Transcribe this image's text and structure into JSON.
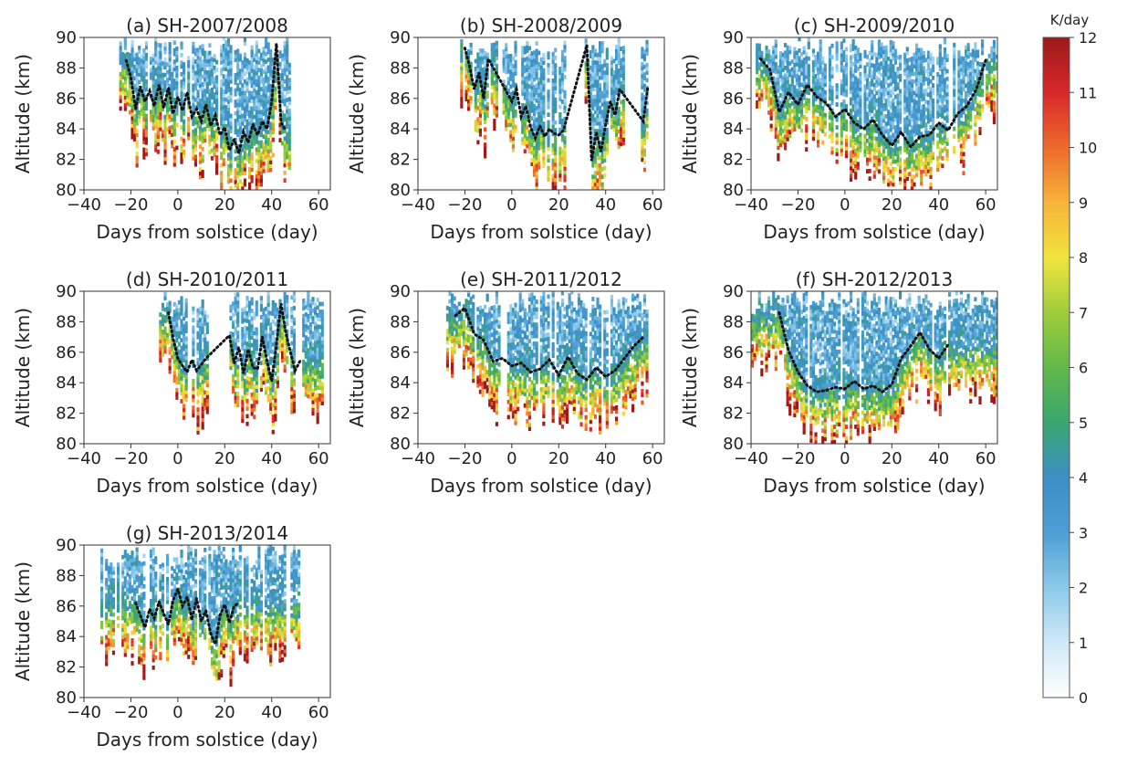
{
  "chart_data": {
    "type": "heatmap",
    "figure_description": "Gravity wave heating rate vs altitude and days from solstice, Southern Hemisphere seasons",
    "colorbar": {
      "label": "K/day",
      "range": [
        0,
        12
      ],
      "ticks": [
        "0",
        "1",
        "2",
        "3",
        "4",
        "5",
        "6",
        "7",
        "8",
        "9",
        "10",
        "11",
        "12"
      ],
      "colormap": [
        "#ffffff",
        "#cfe9f7",
        "#8cc9ea",
        "#4d9ed3",
        "#3b8fc4",
        "#3aa66f",
        "#62b84a",
        "#9fcd3c",
        "#f2e43e",
        "#f6b33b",
        "#ee6a2c",
        "#d8282a",
        "#9b1a1a"
      ]
    },
    "shared_axes": {
      "xlabel": "Days from solstice (day)",
      "ylabel": "Altitude (km)",
      "xlim": [
        -40,
        65
      ],
      "ylim": [
        80,
        90
      ],
      "xticks": [
        "−40",
        "−20",
        "0",
        "20",
        "40",
        "60"
      ],
      "yticks": [
        "80",
        "82",
        "84",
        "86",
        "88",
        "90"
      ]
    },
    "panels": [
      {
        "title": "(a) SH-2007/2008",
        "data_days": [
          -25,
          48
        ],
        "gaps": [],
        "dotted_contour_days": [
          -22,
          -20,
          -18,
          -16,
          -14,
          -12,
          -10,
          -8,
          -6,
          -4,
          -2,
          0,
          2,
          4,
          6,
          8,
          10,
          12,
          14,
          16,
          18,
          20,
          22,
          24,
          26,
          28,
          30,
          32,
          34,
          36,
          38,
          40,
          42,
          44,
          46
        ],
        "dotted_contour_alt": [
          88.5,
          87.4,
          85.3,
          86.8,
          85.8,
          86.5,
          85.5,
          86.9,
          85.4,
          86.7,
          85.0,
          86.1,
          85.2,
          86.4,
          84.8,
          85.3,
          84.5,
          85.6,
          84.2,
          84.9,
          83.6,
          84.1,
          82.6,
          83.3,
          82.4,
          83.8,
          83.1,
          84.3,
          83.6,
          84.5,
          84.0,
          85.8,
          89.6,
          84.4,
          83.9
        ]
      },
      {
        "title": "(b) SH-2008/2009",
        "data_days": [
          -22,
          58
        ],
        "gaps": [
          [
            23,
            31
          ],
          [
            48,
            55
          ]
        ],
        "dotted_contour_days": [
          -20,
          -18,
          -16,
          -14,
          -12,
          -10,
          0,
          2,
          4,
          6,
          8,
          10,
          12,
          14,
          16,
          18,
          20,
          22,
          32,
          34,
          36,
          38,
          40,
          42,
          44,
          46,
          56,
          58
        ],
        "dotted_contour_alt": [
          89.3,
          88.1,
          86.6,
          87.7,
          86.0,
          88.6,
          85.8,
          86.6,
          84.8,
          85.5,
          84.1,
          83.4,
          84.2,
          83.5,
          84.0,
          83.7,
          83.6,
          83.9,
          89.5,
          81.9,
          83.8,
          82.5,
          84.3,
          85.8,
          84.9,
          86.6,
          84.5,
          86.8
        ]
      },
      {
        "title": "(c) SH-2009/2010",
        "data_days": [
          -38,
          65
        ],
        "gaps": [],
        "dotted_contour_days": [
          -36,
          -32,
          -28,
          -24,
          -20,
          -16,
          -12,
          -8,
          -4,
          0,
          4,
          8,
          12,
          16,
          20,
          24,
          28,
          32,
          36,
          40,
          44,
          48,
          52,
          56,
          60
        ],
        "dotted_contour_alt": [
          88.6,
          87.9,
          85.1,
          86.4,
          85.6,
          86.9,
          86.1,
          85.7,
          84.8,
          85.3,
          84.4,
          84.0,
          84.6,
          83.6,
          82.9,
          83.8,
          82.8,
          83.5,
          83.6,
          84.4,
          83.9,
          85.0,
          85.5,
          86.6,
          88.5
        ]
      },
      {
        "title": "(d) SH-2010/2011",
        "data_days": [
          -8,
          62
        ],
        "gaps": [
          [
            14,
            21
          ]
        ],
        "dotted_contour_days": [
          -4,
          -2,
          0,
          2,
          4,
          6,
          8,
          10,
          12,
          22,
          24,
          26,
          28,
          30,
          32,
          34,
          36,
          38,
          40,
          42,
          44,
          46,
          48,
          50,
          52
        ],
        "dotted_contour_alt": [
          88.6,
          86.9,
          85.6,
          85.1,
          84.7,
          85.5,
          84.8,
          85.2,
          85.6,
          87.1,
          85.3,
          86.3,
          84.6,
          86.2,
          85.0,
          84.9,
          87.0,
          85.4,
          84.1,
          86.5,
          89.2,
          87.3,
          86.0,
          84.8,
          85.4
        ]
      },
      {
        "title": "(e) SH-2011/2012",
        "data_days": [
          -28,
          58
        ],
        "gaps": [],
        "dotted_contour_days": [
          -24,
          -20,
          -16,
          -12,
          -8,
          -4,
          0,
          4,
          8,
          12,
          16,
          20,
          24,
          28,
          32,
          36,
          40,
          44,
          48,
          52,
          56
        ],
        "dotted_contour_alt": [
          88.4,
          88.9,
          87.2,
          86.8,
          85.4,
          85.6,
          85.1,
          85.3,
          84.7,
          84.9,
          85.5,
          84.5,
          85.7,
          84.6,
          84.2,
          85.0,
          84.4,
          84.8,
          85.6,
          86.4,
          87.0
        ]
      },
      {
        "title": "(f) SH-2012/2013",
        "data_days": [
          -40,
          65
        ],
        "gaps": [],
        "dotted_contour_days": [
          -28,
          -24,
          -20,
          -16,
          -12,
          -8,
          -4,
          0,
          4,
          8,
          12,
          16,
          20,
          24,
          28,
          32,
          36,
          40,
          44
        ],
        "dotted_contour_alt": [
          88.6,
          86.1,
          84.7,
          83.8,
          83.4,
          83.5,
          83.7,
          83.6,
          84.1,
          83.6,
          83.8,
          83.4,
          83.9,
          85.6,
          86.4,
          87.3,
          86.2,
          85.6,
          86.5
        ]
      },
      {
        "title": "(g) SH-2013/2014",
        "data_days": [
          -33,
          52
        ],
        "gaps": [],
        "dotted_contour_days": [
          -18,
          -16,
          -14,
          -12,
          -10,
          -8,
          -6,
          -4,
          -2,
          0,
          2,
          4,
          6,
          8,
          10,
          12,
          14,
          16,
          18,
          20,
          22,
          24,
          26
        ],
        "dotted_contour_alt": [
          86.2,
          85.4,
          84.6,
          85.8,
          85.2,
          86.3,
          85.5,
          84.8,
          86.4,
          87.1,
          86.0,
          86.6,
          85.1,
          86.5,
          85.0,
          85.7,
          84.2,
          83.5,
          85.4,
          86.1,
          84.9,
          86.0,
          86.2
        ]
      }
    ]
  }
}
